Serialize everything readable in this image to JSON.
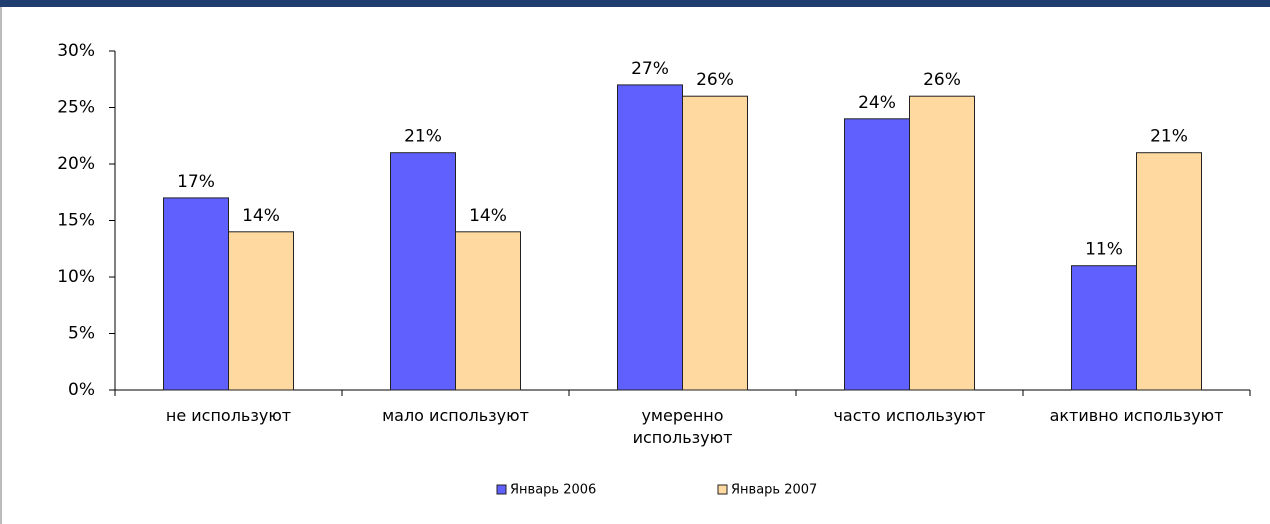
{
  "chart_data": {
    "type": "bar",
    "categories": [
      "не используют",
      "мало используют",
      "умеренно используют",
      "часто используют",
      "активно используют"
    ],
    "series": [
      {
        "name": "Январь 2006",
        "color": "#6060ff",
        "values": [
          17,
          21,
          27,
          24,
          11
        ],
        "value_labels": [
          "17%",
          "21%",
          "27%",
          "24%",
          "11%"
        ]
      },
      {
        "name": "Январь 2007",
        "color": "#ffd9a0",
        "values": [
          14,
          14,
          26,
          26,
          21
        ],
        "value_labels": [
          "14%",
          "14%",
          "26%",
          "26%",
          "21%"
        ]
      }
    ],
    "ylim": [
      0,
      30
    ],
    "yticks": [
      {
        "value": 0,
        "label": "0%"
      },
      {
        "value": 5,
        "label": "5%"
      },
      {
        "value": 10,
        "label": "10%"
      },
      {
        "value": 15,
        "label": "15%"
      },
      {
        "value": 20,
        "label": "20%"
      },
      {
        "value": 25,
        "label": "25%"
      },
      {
        "value": 30,
        "label": "30%"
      }
    ],
    "legend": "bottom"
  }
}
